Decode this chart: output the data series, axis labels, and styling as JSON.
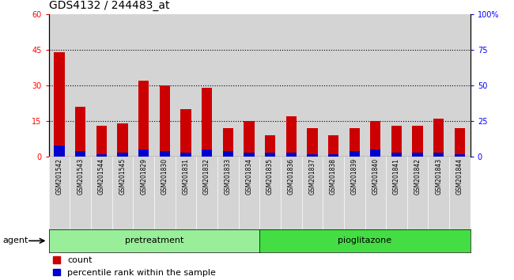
{
  "title": "GDS4132 / 244483_at",
  "categories": [
    "GSM201542",
    "GSM201543",
    "GSM201544",
    "GSM201545",
    "GSM201829",
    "GSM201830",
    "GSM201831",
    "GSM201832",
    "GSM201833",
    "GSM201834",
    "GSM201835",
    "GSM201836",
    "GSM201837",
    "GSM201838",
    "GSM201839",
    "GSM201840",
    "GSM201841",
    "GSM201842",
    "GSM201843",
    "GSM201844"
  ],
  "count_values": [
    44,
    21,
    13,
    14,
    32,
    30,
    20,
    29,
    12,
    15,
    9,
    17,
    12,
    9,
    12,
    15,
    13,
    13,
    16,
    12
  ],
  "percentile_values": [
    8,
    4,
    2,
    3,
    5,
    4,
    3,
    5,
    4,
    3,
    3,
    3,
    2,
    2,
    4,
    5,
    3,
    3,
    3,
    2
  ],
  "count_color": "#cc0000",
  "percentile_color": "#0000cc",
  "ylim_left": [
    0,
    60
  ],
  "ylim_right": [
    0,
    100
  ],
  "yticks_left": [
    0,
    15,
    30,
    45,
    60
  ],
  "yticks_right": [
    0,
    25,
    50,
    75,
    100
  ],
  "ytick_labels_right": [
    "0",
    "25",
    "50",
    "75",
    "100%"
  ],
  "grid_dotted_at": [
    15,
    30,
    45
  ],
  "pretreatment_label": "pretreatment",
  "pioglitazone_label": "pioglitazone",
  "agent_label": "agent",
  "legend_count": "count",
  "legend_percentile": "percentile rank within the sample",
  "bar_width": 0.5,
  "panel_bg": "#d4d4d4",
  "pretreat_color": "#99ee99",
  "pioglit_color": "#44dd44",
  "title_fontsize": 10,
  "tick_fontsize": 7,
  "label_fontsize": 8,
  "xtick_fontsize": 5.5,
  "n_pretreatment": 10,
  "n_pioglitazone": 10
}
